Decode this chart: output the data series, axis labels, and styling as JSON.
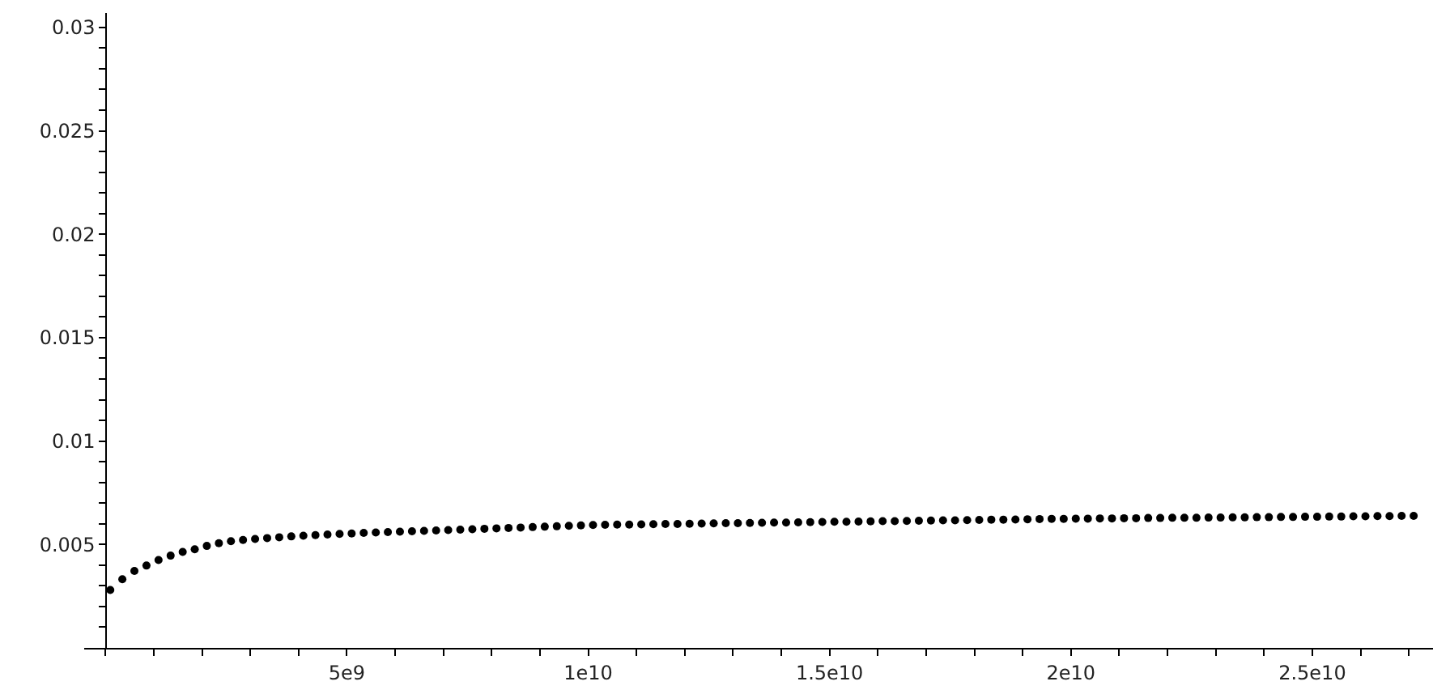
{
  "chart_data": {
    "type": "scatter",
    "marker": "circle",
    "color": "#000000",
    "x": [
      100000000.0,
      350000000.0,
      600000000.0,
      850000000.0,
      1100000000.0,
      1350000000.0,
      1600000000.0,
      1850000000.0,
      2100000000.0,
      2350000000.0,
      2600000000.0,
      2850000000.0,
      3100000000.0,
      3350000000.0,
      3600000000.0,
      3850000000.0,
      4100000000.0,
      4350000000.0,
      4600000000.0,
      4850000000.0,
      5100000000.0,
      5350000000.0,
      5600000000.0,
      5850000000.0,
      6100000000.0,
      6350000000.0,
      6600000000.0,
      6850000000.0,
      7100000000.0,
      7350000000.0,
      7600000000.0,
      7850000000.0,
      8100000000.0,
      8350000000.0,
      8600000000.0,
      8850000000.0,
      9100000000.0,
      9350000000.0,
      9600000000.0,
      9850000000.0,
      10100000000.0,
      10350000000.0,
      10600000000.0,
      10850000000.0,
      11100000000.0,
      11350000000.0,
      11600000000.0,
      11850000000.0,
      12100000000.0,
      12350000000.0,
      12600000000.0,
      12850000000.0,
      13100000000.0,
      13350000000.0,
      13600000000.0,
      13850000000.0,
      14100000000.0,
      14350000000.0,
      14600000000.0,
      14850000000.0,
      15100000000.0,
      15350000000.0,
      15600000000.0,
      15850000000.0,
      16100000000.0,
      16350000000.0,
      16600000000.0,
      16850000000.0,
      17100000000.0,
      17350000000.0,
      17600000000.0,
      17850000000.0,
      18100000000.0,
      18350000000.0,
      18600000000.0,
      18850000000.0,
      19100000000.0,
      19350000000.0,
      19600000000.0,
      19850000000.0,
      20100000000.0,
      20350000000.0,
      20600000000.0,
      20850000000.0,
      21100000000.0,
      21350000000.0,
      21600000000.0,
      21850000000.0,
      22100000000.0,
      22350000000.0,
      22600000000.0,
      22850000000.0,
      23100000000.0,
      23350000000.0,
      23600000000.0,
      23850000000.0,
      24100000000.0,
      24350000000.0,
      24600000000.0,
      24850000000.0,
      25100000000.0,
      25350000000.0,
      25600000000.0,
      25850000000.0,
      26100000000.0,
      26350000000.0,
      26600000000.0,
      26850000000.0,
      27100000000.0
    ],
    "values": [
      0.0028,
      0.00332,
      0.00372,
      0.00398,
      0.00425,
      0.00446,
      0.00464,
      0.00477,
      0.00493,
      0.00506,
      0.00516,
      0.00522,
      0.00527,
      0.00531,
      0.00535,
      0.00539,
      0.00542,
      0.00545,
      0.00548,
      0.00551,
      0.00553,
      0.00556,
      0.00558,
      0.0056,
      0.00562,
      0.00564,
      0.00566,
      0.00568,
      0.0057,
      0.00572,
      0.00574,
      0.00576,
      0.00578,
      0.0058,
      0.00582,
      0.00584,
      0.00586,
      0.00588,
      0.0059,
      0.00592,
      0.00594,
      0.00595,
      0.00596,
      0.00596,
      0.00597,
      0.00598,
      0.00599,
      0.00599,
      0.006,
      0.00601,
      0.00602,
      0.00603,
      0.00603,
      0.00604,
      0.00605,
      0.00606,
      0.00606,
      0.00607,
      0.00608,
      0.00609,
      0.0061,
      0.0061,
      0.00611,
      0.00612,
      0.00613,
      0.00613,
      0.00614,
      0.00615,
      0.00616,
      0.00617,
      0.00617,
      0.00618,
      0.00619,
      0.0062,
      0.0062,
      0.00621,
      0.00622,
      0.00623,
      0.00624,
      0.00624,
      0.00625,
      0.00625,
      0.00626,
      0.00626,
      0.00627,
      0.00627,
      0.00628,
      0.00628,
      0.00629,
      0.00629,
      0.00629,
      0.0063,
      0.0063,
      0.00631,
      0.00631,
      0.00632,
      0.00632,
      0.00633,
      0.00633,
      0.00634,
      0.00634,
      0.00635,
      0.00635,
      0.00636,
      0.00636,
      0.00637,
      0.00637,
      0.00638,
      0.00638
    ],
    "xlim": [
      -440000000.0,
      27500000000.0
    ],
    "ylim": [
      0,
      0.0307
    ],
    "xticks": [
      {
        "value": 0,
        "label": null
      },
      {
        "value": 1000000000.0,
        "label": null
      },
      {
        "value": 2000000000.0,
        "label": null
      },
      {
        "value": 3000000000.0,
        "label": null
      },
      {
        "value": 4000000000.0,
        "label": null
      },
      {
        "value": 5000000000.0,
        "label": "5e9"
      },
      {
        "value": 6000000000.0,
        "label": null
      },
      {
        "value": 7000000000.0,
        "label": null
      },
      {
        "value": 8000000000.0,
        "label": null
      },
      {
        "value": 9000000000.0,
        "label": null
      },
      {
        "value": 10000000000.0,
        "label": "1e10"
      },
      {
        "value": 11000000000.0,
        "label": null
      },
      {
        "value": 12000000000.0,
        "label": null
      },
      {
        "value": 13000000000.0,
        "label": null
      },
      {
        "value": 14000000000.0,
        "label": null
      },
      {
        "value": 15000000000.0,
        "label": "1.5e10"
      },
      {
        "value": 16000000000.0,
        "label": null
      },
      {
        "value": 17000000000.0,
        "label": null
      },
      {
        "value": 18000000000.0,
        "label": null
      },
      {
        "value": 19000000000.0,
        "label": null
      },
      {
        "value": 20000000000.0,
        "label": "2e10"
      },
      {
        "value": 21000000000.0,
        "label": null
      },
      {
        "value": 22000000000.0,
        "label": null
      },
      {
        "value": 23000000000.0,
        "label": null
      },
      {
        "value": 24000000000.0,
        "label": null
      },
      {
        "value": 25000000000.0,
        "label": "2.5e10"
      },
      {
        "value": 26000000000.0,
        "label": null
      },
      {
        "value": 27000000000.0,
        "label": null
      }
    ],
    "yticks": [
      {
        "value": 0.001,
        "label": null
      },
      {
        "value": 0.002,
        "label": null
      },
      {
        "value": 0.003,
        "label": null
      },
      {
        "value": 0.004,
        "label": null
      },
      0.005,
      {
        "value": 0.006,
        "label": null
      },
      {
        "value": 0.007,
        "label": null
      },
      {
        "value": 0.008,
        "label": null
      },
      {
        "value": 0.009,
        "label": null
      },
      0.01,
      {
        "value": 0.011,
        "label": null
      },
      {
        "value": 0.012,
        "label": null
      },
      {
        "value": 0.013,
        "label": null
      },
      {
        "value": 0.014,
        "label": null
      },
      0.015,
      {
        "value": 0.016,
        "label": null
      },
      {
        "value": 0.017,
        "label": null
      },
      {
        "value": 0.018,
        "label": null
      },
      {
        "value": 0.019,
        "label": null
      },
      0.02,
      {
        "value": 0.021,
        "label": null
      },
      {
        "value": 0.022,
        "label": null
      },
      {
        "value": 0.023,
        "label": null
      },
      {
        "value": 0.024,
        "label": null
      },
      0.025,
      {
        "value": 0.026,
        "label": null
      },
      {
        "value": 0.027,
        "label": null
      },
      {
        "value": 0.028,
        "label": null
      },
      {
        "value": 0.029,
        "label": null
      },
      0.03
    ]
  }
}
